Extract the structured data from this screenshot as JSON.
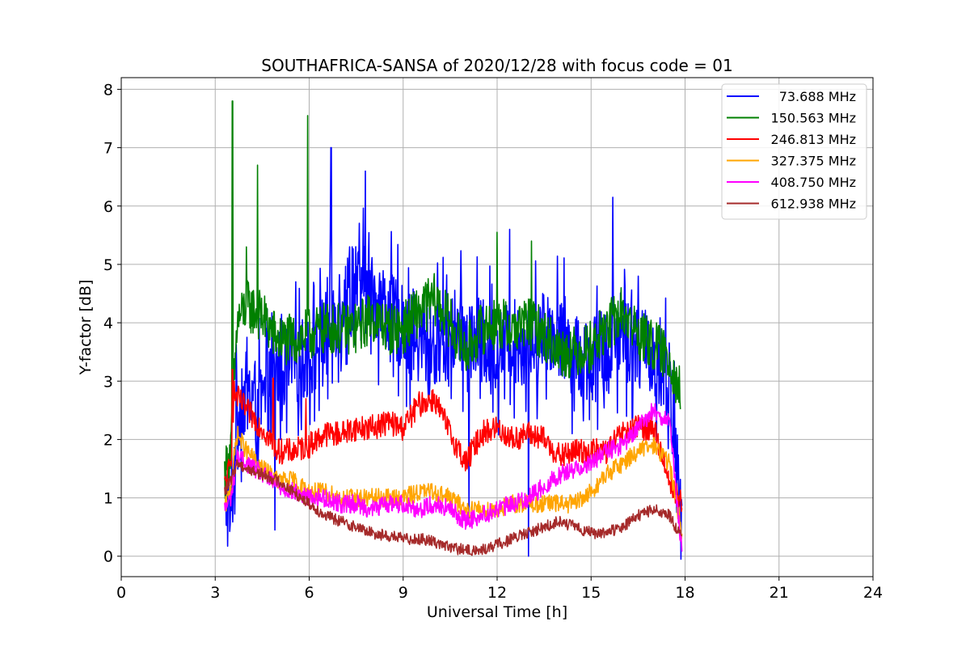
{
  "chart_data": {
    "type": "line",
    "title": "SOUTHAFRICA-SANSA of 2020/12/28 with focus code = 01",
    "xlabel": "Universal Time [h]",
    "ylabel": "Y-factor [dB]",
    "xlim": [
      0,
      24
    ],
    "ylim": [
      -0.35,
      8.2
    ],
    "xticks": [
      0,
      3,
      6,
      9,
      12,
      15,
      18,
      21,
      24
    ],
    "yticks": [
      0,
      1,
      2,
      3,
      4,
      5,
      6,
      7,
      8
    ],
    "grid": true,
    "legend_position": "top-right",
    "series": [
      {
        "name": "73.688 MHz",
        "color": "#0000ff",
        "x": [
          3.3,
          3.5,
          3.7,
          4.0,
          4.5,
          5.0,
          5.5,
          6.0,
          6.5,
          7.0,
          7.5,
          8.0,
          8.5,
          9.0,
          9.5,
          10.0,
          10.5,
          11.0,
          11.5,
          12.0,
          12.5,
          13.0,
          13.5,
          14.0,
          14.5,
          15.0,
          15.5,
          16.0,
          16.5,
          17.0,
          17.5,
          17.9
        ],
        "values": [
          1.0,
          0.6,
          2.5,
          2.8,
          2.6,
          3.2,
          3.3,
          3.4,
          3.8,
          4.4,
          4.6,
          4.5,
          4.2,
          3.9,
          3.6,
          3.6,
          3.9,
          3.8,
          3.7,
          3.5,
          3.7,
          3.6,
          3.9,
          3.8,
          3.4,
          3.4,
          3.6,
          3.9,
          3.6,
          3.4,
          3.0,
          0.5
        ],
        "spikes": [
          {
            "x": 6.7,
            "value": 7.0
          },
          {
            "x": 7.8,
            "value": 6.6
          },
          {
            "x": 15.7,
            "value": 6.15
          },
          {
            "x": 12.4,
            "value": 5.6
          },
          {
            "x": 4.9,
            "value": 0.45
          },
          {
            "x": 13.0,
            "value": 0.0
          },
          {
            "x": 11.1,
            "value": 0.65
          }
        ]
      },
      {
        "name": "150.563 MHz",
        "color": "#008000",
        "x": [
          3.3,
          3.5,
          3.7,
          4.0,
          4.5,
          5.0,
          5.5,
          6.0,
          6.5,
          7.0,
          7.5,
          8.0,
          8.5,
          9.0,
          9.5,
          10.0,
          10.5,
          11.0,
          11.5,
          12.0,
          12.5,
          13.0,
          13.5,
          14.0,
          14.5,
          15.0,
          15.5,
          16.0,
          16.5,
          17.0,
          17.5,
          17.85
        ],
        "values": [
          1.4,
          1.8,
          4.0,
          4.3,
          4.1,
          3.7,
          3.7,
          3.8,
          3.9,
          3.9,
          3.9,
          4.1,
          3.9,
          3.9,
          4.2,
          4.4,
          4.0,
          3.5,
          3.9,
          4.0,
          3.9,
          4.0,
          3.8,
          3.5,
          3.5,
          3.6,
          3.9,
          4.2,
          3.8,
          3.6,
          3.4,
          2.8
        ],
        "spikes": [
          {
            "x": 3.55,
            "value": 7.8
          },
          {
            "x": 4.35,
            "value": 6.7
          },
          {
            "x": 5.95,
            "value": 7.55
          },
          {
            "x": 4.0,
            "value": 5.3
          },
          {
            "x": 12.0,
            "value": 5.55
          },
          {
            "x": 13.1,
            "value": 5.4
          }
        ]
      },
      {
        "name": "246.813 MHz",
        "color": "#ff0000",
        "x": [
          3.3,
          3.5,
          3.6,
          4.0,
          4.5,
          5.0,
          5.5,
          6.0,
          6.5,
          7.0,
          7.5,
          8.0,
          8.5,
          9.0,
          9.5,
          10.0,
          10.5,
          11.0,
          11.5,
          12.0,
          12.5,
          13.0,
          13.5,
          14.0,
          14.5,
          15.0,
          15.5,
          16.0,
          16.5,
          17.0,
          17.5,
          17.9
        ],
        "values": [
          1.2,
          1.6,
          2.8,
          2.5,
          2.2,
          1.8,
          1.8,
          1.9,
          2.1,
          2.1,
          2.2,
          2.2,
          2.3,
          2.2,
          2.6,
          2.7,
          2.1,
          1.6,
          2.1,
          2.2,
          2.0,
          2.1,
          2.0,
          1.7,
          1.8,
          1.8,
          1.8,
          2.1,
          2.2,
          2.2,
          1.3,
          0.9
        ],
        "spikes": [
          {
            "x": 3.55,
            "value": 3.2
          },
          {
            "x": 4.85,
            "value": 3.05
          },
          {
            "x": 5.9,
            "value": 2.7
          }
        ]
      },
      {
        "name": "327.375 MHz",
        "color": "#ffa500",
        "x": [
          3.3,
          3.5,
          3.7,
          4.0,
          4.5,
          5.0,
          5.5,
          6.0,
          6.5,
          7.0,
          7.5,
          8.0,
          8.5,
          9.0,
          9.5,
          10.0,
          10.5,
          11.0,
          11.5,
          12.0,
          12.5,
          13.0,
          13.5,
          14.0,
          14.5,
          15.0,
          15.5,
          16.0,
          16.5,
          17.0,
          17.5,
          17.9
        ],
        "values": [
          0.8,
          1.2,
          2.1,
          1.8,
          1.5,
          1.3,
          1.3,
          1.1,
          1.1,
          1.0,
          1.0,
          1.0,
          1.0,
          1.0,
          1.1,
          1.1,
          1.0,
          0.8,
          0.8,
          0.8,
          0.9,
          0.9,
          0.9,
          0.9,
          0.9,
          1.1,
          1.4,
          1.6,
          1.8,
          1.9,
          1.6,
          0.4
        ]
      },
      {
        "name": "408.750 MHz",
        "color": "#ff00ff",
        "x": [
          3.3,
          3.5,
          3.7,
          4.0,
          4.5,
          5.0,
          5.5,
          6.0,
          6.5,
          7.0,
          7.5,
          8.0,
          8.5,
          9.0,
          9.5,
          10.0,
          10.5,
          11.0,
          11.5,
          12.0,
          12.5,
          13.0,
          13.5,
          14.0,
          14.5,
          15.0,
          15.5,
          16.0,
          16.5,
          17.0,
          17.5,
          17.9
        ],
        "values": [
          0.8,
          1.0,
          1.7,
          1.6,
          1.4,
          1.2,
          1.1,
          1.0,
          1.0,
          0.9,
          0.9,
          0.8,
          0.9,
          0.9,
          0.8,
          0.9,
          0.8,
          0.6,
          0.7,
          0.8,
          0.9,
          1.0,
          1.2,
          1.4,
          1.5,
          1.6,
          1.8,
          1.9,
          2.2,
          2.5,
          2.3,
          0.05
        ]
      },
      {
        "name": "612.938 MHz",
        "color": "#a52a2a",
        "x": [
          3.3,
          3.5,
          3.7,
          4.0,
          4.5,
          5.0,
          5.5,
          6.0,
          6.5,
          7.0,
          7.5,
          8.0,
          8.5,
          9.0,
          9.5,
          10.0,
          10.5,
          11.0,
          11.5,
          12.0,
          12.5,
          13.0,
          13.5,
          14.0,
          14.5,
          15.0,
          15.5,
          16.0,
          16.5,
          17.0,
          17.5,
          17.9
        ],
        "values": [
          1.1,
          1.3,
          1.6,
          1.5,
          1.4,
          1.3,
          1.1,
          0.9,
          0.7,
          0.6,
          0.5,
          0.4,
          0.35,
          0.3,
          0.3,
          0.25,
          0.15,
          0.1,
          0.1,
          0.2,
          0.3,
          0.4,
          0.5,
          0.6,
          0.5,
          0.4,
          0.4,
          0.5,
          0.7,
          0.8,
          0.7,
          0.3
        ]
      }
    ]
  }
}
